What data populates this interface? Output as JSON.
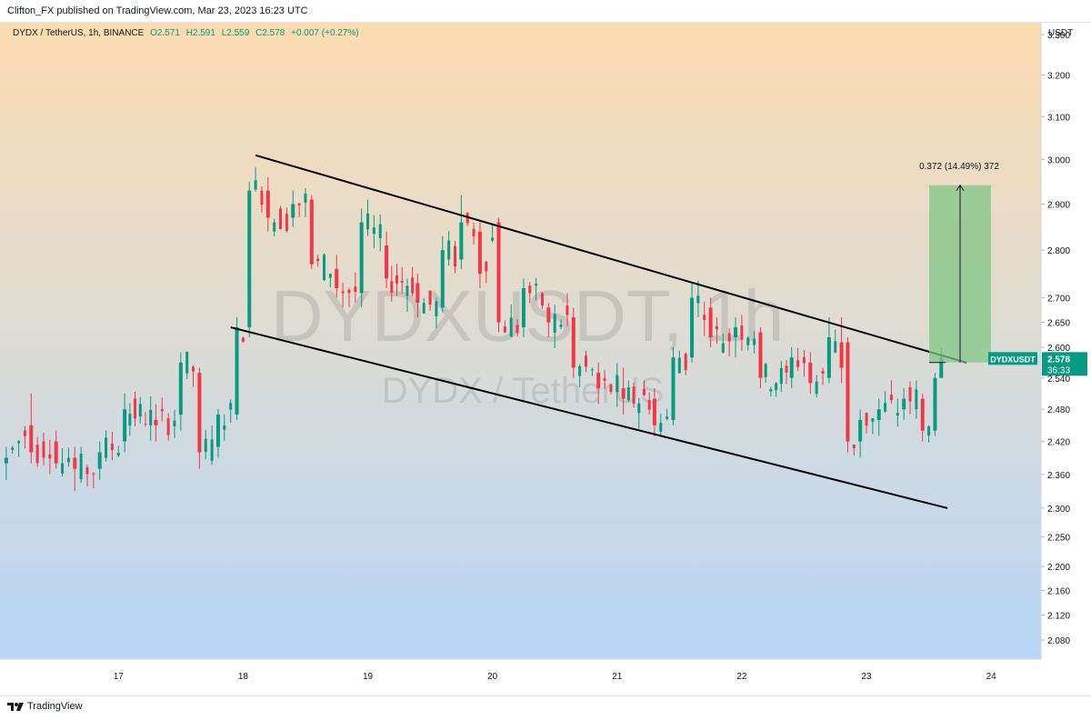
{
  "header": {
    "publisher_text": "Clifton_FX published on TradingView.com, Mar 23, 2023 16:23 UTC"
  },
  "legend": {
    "symbol": "DYDX / TetherUS, 1h, BINANCE",
    "open": "O2.571",
    "high": "H2.591",
    "low": "L2.559",
    "close": "C2.578",
    "change": "+0.007 (+0.27%)"
  },
  "price_axis": {
    "currency": "USDT",
    "ticks": [
      "3.300",
      "3.200",
      "3.100",
      "3.000",
      "2.900",
      "2.800",
      "2.700",
      "2.650",
      "2.600",
      "2.540",
      "2.480",
      "2.420",
      "2.360",
      "2.300",
      "2.250",
      "2.200",
      "2.160",
      "2.120",
      "2.080"
    ]
  },
  "time_axis": {
    "ticks": [
      "17",
      "18",
      "19",
      "20",
      "21",
      "22",
      "23",
      "24"
    ]
  },
  "watermark": {
    "ticker": "DYDXUSDT, 1h",
    "name": "DYDX / TetherUS"
  },
  "price_tag": {
    "symbol": "DYDXUSDT",
    "price": "2.578",
    "countdown": "36:33"
  },
  "measure": {
    "label": "0.372 (14.49%) 372",
    "from_price": 2.57,
    "to_price": 2.942
  },
  "channel": {
    "upper": {
      "from": {
        "day": 18.1,
        "price": 3.01
      },
      "to": {
        "day": 23.8,
        "price": 2.57
      }
    },
    "lower": {
      "from": {
        "day": 17.9,
        "price": 2.64
      },
      "to": {
        "day": 23.65,
        "price": 2.3
      }
    }
  },
  "footer": {
    "brand": "TradingView"
  },
  "colors": {
    "up": "#089981",
    "down": "#f23645",
    "channel_line": "#000000",
    "measure_fill": "#81c784",
    "tag_bg": "#089981",
    "gradient_top": "#fbdcb0",
    "gradient_bottom": "#b6d6f6"
  },
  "chart_data": {
    "type": "candlestick",
    "title": "DYDX / TetherUS, 1h, BINANCE",
    "xlabel": "",
    "ylabel": "",
    "x_unit": "day of March 2023",
    "ylim": [
      2.05,
      3.33
    ],
    "xlim": [
      16.05,
      24.4
    ],
    "grid": false,
    "candles": [
      {
        "x": 16.1,
        "o": 2.38,
        "h": 2.41,
        "l": 2.35,
        "c": 2.39
      },
      {
        "x": 16.3,
        "o": 2.45,
        "h": 2.51,
        "l": 2.38,
        "c": 2.4
      },
      {
        "x": 16.5,
        "o": 2.42,
        "h": 2.44,
        "l": 2.37,
        "c": 2.38
      },
      {
        "x": 16.65,
        "o": 2.39,
        "h": 2.41,
        "l": 2.33,
        "c": 2.37
      },
      {
        "x": 16.85,
        "o": 2.37,
        "h": 2.42,
        "l": 2.35,
        "c": 2.4
      },
      {
        "x": 17.05,
        "o": 2.42,
        "h": 2.51,
        "l": 2.4,
        "c": 2.48
      },
      {
        "x": 17.3,
        "o": 2.46,
        "h": 2.49,
        "l": 2.42,
        "c": 2.45
      },
      {
        "x": 17.5,
        "o": 2.47,
        "h": 2.59,
        "l": 2.44,
        "c": 2.57
      },
      {
        "x": 17.65,
        "o": 2.55,
        "h": 2.56,
        "l": 2.37,
        "c": 2.4
      },
      {
        "x": 17.8,
        "o": 2.41,
        "h": 2.48,
        "l": 2.39,
        "c": 2.47
      },
      {
        "x": 17.95,
        "o": 2.47,
        "h": 2.66,
        "l": 2.46,
        "c": 2.64
      },
      {
        "x": 18.05,
        "o": 2.64,
        "h": 2.95,
        "l": 2.62,
        "c": 2.93
      },
      {
        "x": 18.2,
        "o": 2.93,
        "h": 2.96,
        "l": 2.84,
        "c": 2.87
      },
      {
        "x": 18.4,
        "o": 2.87,
        "h": 2.93,
        "l": 2.85,
        "c": 2.9
      },
      {
        "x": 18.55,
        "o": 2.91,
        "h": 2.92,
        "l": 2.76,
        "c": 2.77
      },
      {
        "x": 18.75,
        "o": 2.76,
        "h": 2.79,
        "l": 2.7,
        "c": 2.72
      },
      {
        "x": 18.95,
        "o": 2.71,
        "h": 2.89,
        "l": 2.68,
        "c": 2.86
      },
      {
        "x": 19.15,
        "o": 2.81,
        "h": 2.84,
        "l": 2.72,
        "c": 2.74
      },
      {
        "x": 19.4,
        "o": 2.73,
        "h": 2.75,
        "l": 2.66,
        "c": 2.69
      },
      {
        "x": 19.6,
        "o": 2.68,
        "h": 2.83,
        "l": 2.67,
        "c": 2.8
      },
      {
        "x": 19.75,
        "o": 2.78,
        "h": 2.92,
        "l": 2.76,
        "c": 2.86
      },
      {
        "x": 19.9,
        "o": 2.84,
        "h": 2.86,
        "l": 2.72,
        "c": 2.75
      },
      {
        "x": 20.05,
        "o": 2.86,
        "h": 2.87,
        "l": 2.63,
        "c": 2.65
      },
      {
        "x": 20.25,
        "o": 2.64,
        "h": 2.74,
        "l": 2.62,
        "c": 2.72
      },
      {
        "x": 20.45,
        "o": 2.68,
        "h": 2.69,
        "l": 2.62,
        "c": 2.65
      },
      {
        "x": 20.65,
        "o": 2.66,
        "h": 2.68,
        "l": 2.54,
        "c": 2.56
      },
      {
        "x": 20.85,
        "o": 2.55,
        "h": 2.57,
        "l": 2.49,
        "c": 2.52
      },
      {
        "x": 21.05,
        "o": 2.52,
        "h": 2.56,
        "l": 2.47,
        "c": 2.5
      },
      {
        "x": 21.3,
        "o": 2.5,
        "h": 2.52,
        "l": 2.43,
        "c": 2.45
      },
      {
        "x": 21.45,
        "o": 2.46,
        "h": 2.6,
        "l": 2.45,
        "c": 2.58
      },
      {
        "x": 21.6,
        "o": 2.58,
        "h": 2.73,
        "l": 2.57,
        "c": 2.7
      },
      {
        "x": 21.75,
        "o": 2.68,
        "h": 2.7,
        "l": 2.6,
        "c": 2.62
      },
      {
        "x": 21.95,
        "o": 2.62,
        "h": 2.66,
        "l": 2.58,
        "c": 2.64
      },
      {
        "x": 22.15,
        "o": 2.63,
        "h": 2.64,
        "l": 2.52,
        "c": 2.54
      },
      {
        "x": 22.4,
        "o": 2.54,
        "h": 2.6,
        "l": 2.52,
        "c": 2.58
      },
      {
        "x": 22.55,
        "o": 2.57,
        "h": 2.59,
        "l": 2.51,
        "c": 2.53
      },
      {
        "x": 22.7,
        "o": 2.54,
        "h": 2.66,
        "l": 2.53,
        "c": 2.62
      },
      {
        "x": 22.8,
        "o": 2.61,
        "h": 2.66,
        "l": 2.53,
        "c": 2.56
      },
      {
        "x": 22.85,
        "o": 2.61,
        "h": 2.62,
        "l": 2.4,
        "c": 2.42
      },
      {
        "x": 22.95,
        "o": 2.42,
        "h": 2.48,
        "l": 2.39,
        "c": 2.46
      },
      {
        "x": 23.1,
        "o": 2.46,
        "h": 2.5,
        "l": 2.43,
        "c": 2.48
      },
      {
        "x": 23.3,
        "o": 2.48,
        "h": 2.52,
        "l": 2.46,
        "c": 2.5
      },
      {
        "x": 23.45,
        "o": 2.5,
        "h": 2.51,
        "l": 2.42,
        "c": 2.44
      },
      {
        "x": 23.55,
        "o": 2.44,
        "h": 2.55,
        "l": 2.43,
        "c": 2.54
      },
      {
        "x": 23.6,
        "o": 2.54,
        "h": 2.6,
        "l": 2.54,
        "c": 2.58
      }
    ]
  }
}
